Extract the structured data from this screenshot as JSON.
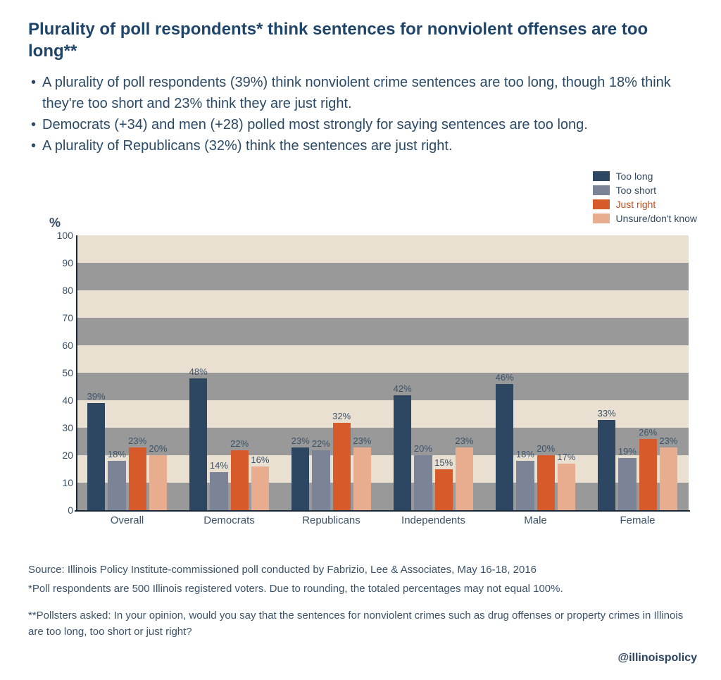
{
  "title": "Plurality of poll respondents* think sentences for nonviolent offenses are too long**",
  "bullets": [
    "A plurality of poll respondents (39%) think nonviolent crime sentences are too long, though 18% think they're too short and 23% think they are just right.",
    "Democrats (+34) and men (+28) polled most strongly for saying sentences are too long.",
    "A plurality of Republicans (32%) think the sentences are just right."
  ],
  "chart": {
    "type": "grouped-bar",
    "ylabel": "%",
    "ylim": [
      0,
      100
    ],
    "ytick_step": 10,
    "band_colors": [
      "#999999",
      "#e9e0d2"
    ],
    "background": "#ffffff",
    "axis_color": "#1a2a3a",
    "label_fontsize": 13,
    "tick_fontsize": 14,
    "series": [
      {
        "name": "Too long",
        "color": "#2d4763",
        "label_color": "#334b62"
      },
      {
        "name": "Too short",
        "color": "#7b8397",
        "label_color": "#334b62"
      },
      {
        "name": "Just right",
        "color": "#d65a2a",
        "label_color": "#c94f20"
      },
      {
        "name": "Unsure/don't know",
        "color": "#e8ad8e",
        "label_color": "#334b62"
      }
    ],
    "categories": [
      "Overall",
      "Democrats",
      "Republicans",
      "Independents",
      "Male",
      "Female"
    ],
    "data": [
      [
        39,
        18,
        23,
        20
      ],
      [
        48,
        14,
        22,
        16
      ],
      [
        23,
        22,
        32,
        23
      ],
      [
        42,
        20,
        15,
        23
      ],
      [
        46,
        18,
        20,
        17
      ],
      [
        33,
        19,
        26,
        23
      ]
    ]
  },
  "footer": {
    "source": "Source: Illinois Policy Institute-commissioned poll conducted by Fabrizio, Lee & Associates, May 16-18, 2016",
    "note1": "*Poll respondents are 500 Illinois registered voters. Due to rounding, the totaled percentages may not equal 100%.",
    "note2": "**Pollsters asked: In your opinion, would you say that the sentences for nonviolent crimes such as drug offenses or property crimes in Illinois are too long, too short or just right?",
    "handle": "@illinoispolicy"
  }
}
